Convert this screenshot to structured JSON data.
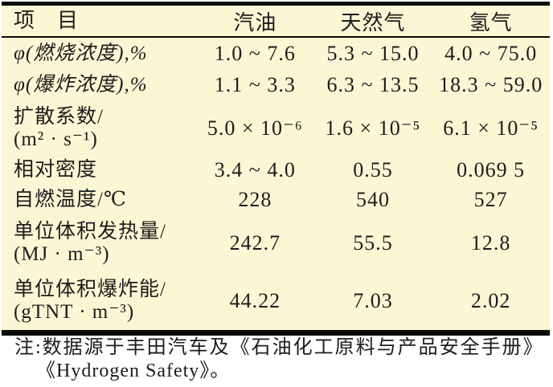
{
  "table": {
    "header": {
      "item_label": "项　目",
      "columns": [
        "汽油",
        "天然气",
        "氢气"
      ]
    },
    "rows": [
      {
        "label": "φ(燃烧浓度),%",
        "values": [
          "1.0 ~ 7.6",
          "5.3 ~ 15.0",
          "4.0 ~ 75.0"
        ]
      },
      {
        "label": "φ(爆炸浓度),%",
        "values": [
          "1.1 ~ 3.3",
          "6.3 ~ 13.5",
          "18.3 ~ 59.0"
        ]
      },
      {
        "label": "扩散系数/",
        "label2": "(m² · s⁻¹)",
        "values": [
          "5.0 × 10⁻⁶",
          "1.6 × 10⁻⁵",
          "6.1 × 10⁻⁵"
        ]
      },
      {
        "label": "相对密度",
        "values": [
          "3.4 ~ 4.0",
          "0.55",
          "0.069 5"
        ]
      },
      {
        "label": "自燃温度/℃",
        "values": [
          "228",
          "540",
          "527"
        ]
      },
      {
        "label": "单位体积发热量/",
        "label2": "(MJ · m⁻³)",
        "values": [
          "242.7",
          "55.5",
          "12.8"
        ]
      },
      {
        "label": "单位体积爆炸能/",
        "label2": "(gTNT · m⁻³)",
        "values": [
          "44.22",
          "7.03",
          "2.02"
        ]
      }
    ],
    "note": {
      "line1": "注:数据源于丰田汽车及《石油化工原料与产品安全手册》",
      "line2": "《Hydrogen Safety》。"
    }
  },
  "colors": {
    "table_background": "#fbf7d5",
    "page_background": "#ffffff",
    "text": "#1c1c1c",
    "rule": "#0a0a0a"
  }
}
